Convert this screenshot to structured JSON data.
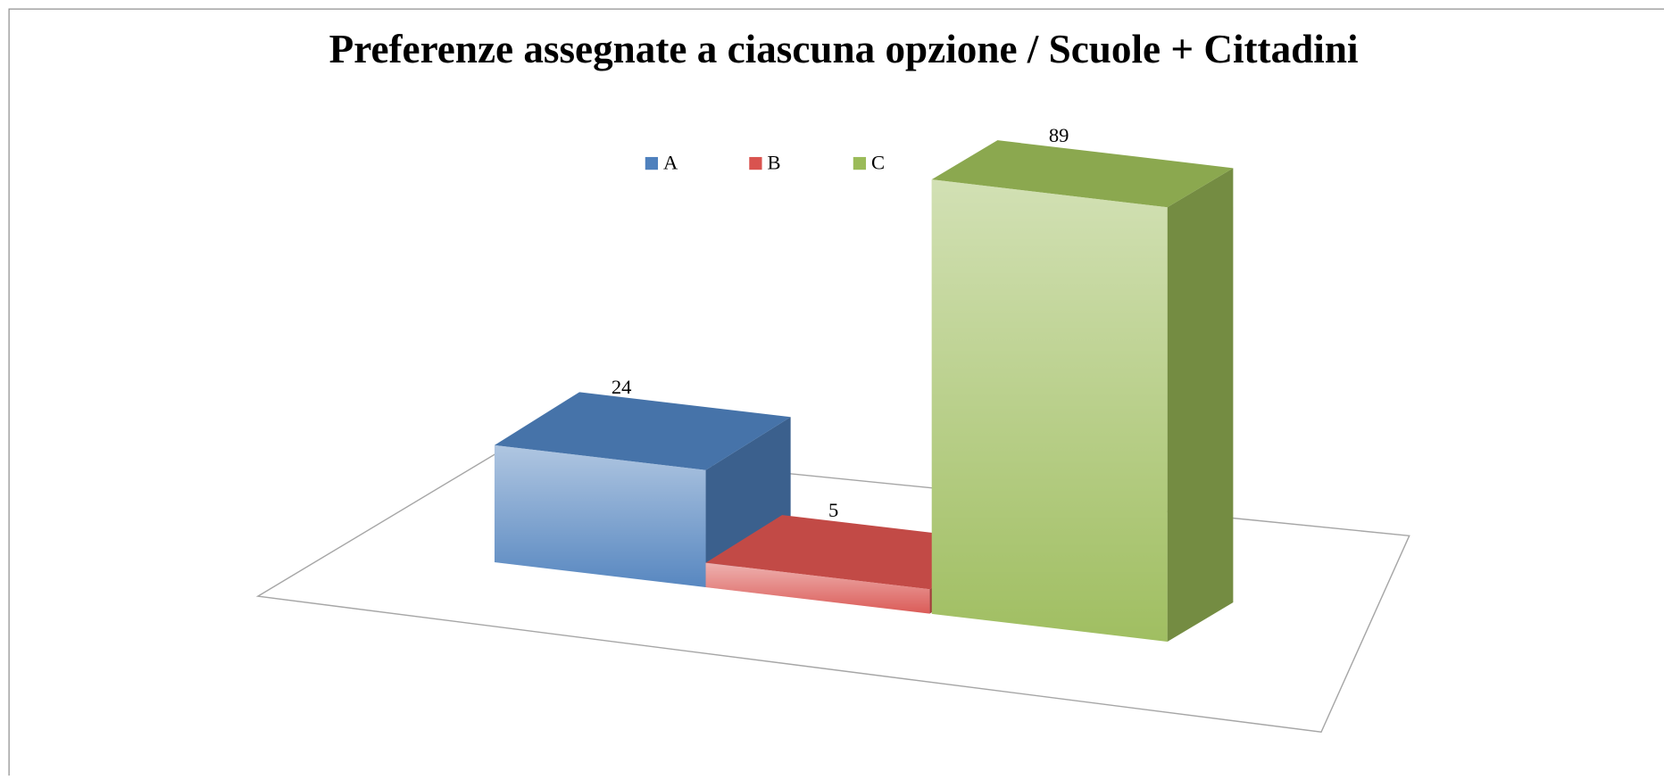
{
  "chart_data": {
    "type": "bar3d",
    "title": "Preferenze assegnate a ciascuna opzione / Scuole + Cittadini",
    "categories": [
      null
    ],
    "series": [
      {
        "name": "A",
        "color": "#4f81bd",
        "values": [
          24
        ]
      },
      {
        "name": "B",
        "color": "#d9534f",
        "values": [
          5
        ]
      },
      {
        "name": "C",
        "color": "#9bbb59",
        "values": [
          89
        ]
      }
    ],
    "legend": "top"
  }
}
